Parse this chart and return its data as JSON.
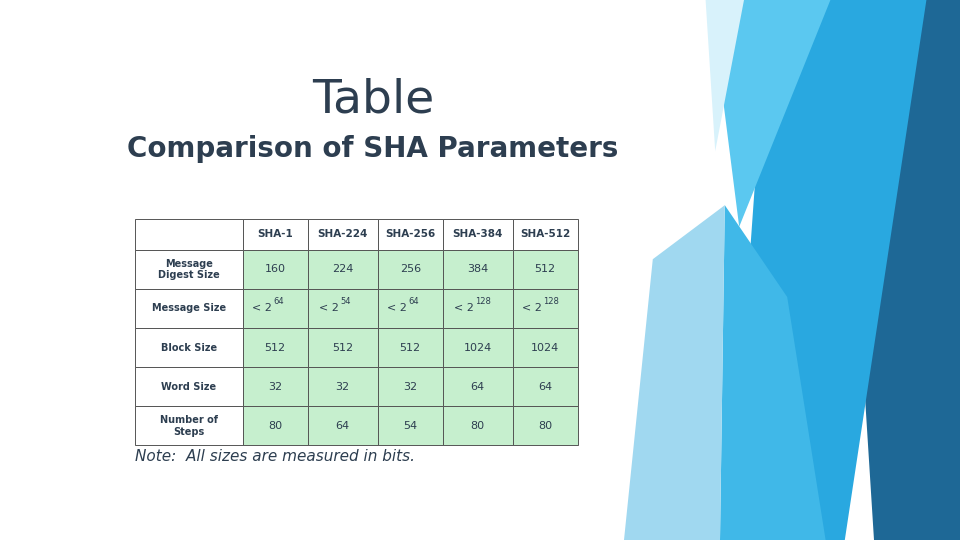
{
  "title": "Table",
  "subtitle": "Comparison of SHA Parameters",
  "note": "Note:  All sizes are measured in bits.",
  "title_fontsize": 34,
  "subtitle_fontsize": 20,
  "note_fontsize": 11,
  "bg_color": "#ffffff",
  "title_color": "#2d3e50",
  "subtitle_color": "#2d3e50",
  "col_headers": [
    "",
    "SHA-1",
    "SHA-224",
    "SHA-256",
    "SHA-384",
    "SHA-512"
  ],
  "row_headers": [
    "Message\nDigest Size",
    "Message Size",
    "Block Size",
    "Word Size",
    "Number of\nSteps"
  ],
  "table_data": [
    [
      "160",
      "224",
      "256",
      "384",
      "512"
    ],
    [
      "< 264",
      "< 254",
      "< 264",
      "< 2128",
      "< 2128"
    ],
    [
      "512",
      "512",
      "512",
      "1024",
      "1024"
    ],
    [
      "32",
      "32",
      "32",
      "64",
      "64"
    ],
    [
      "80",
      "64",
      "54",
      "80",
      "80"
    ]
  ],
  "message_size_superscripts": [
    [
      "64"
    ],
    [
      "54"
    ],
    [
      "64"
    ],
    [
      "128"
    ],
    [
      "128"
    ]
  ],
  "header_bg": "#ffffff",
  "header_text_color": "#2d3e50",
  "cell_bg_green": "#c6efce",
  "cell_text_color": "#2d3e50",
  "border_color": "#555555"
}
